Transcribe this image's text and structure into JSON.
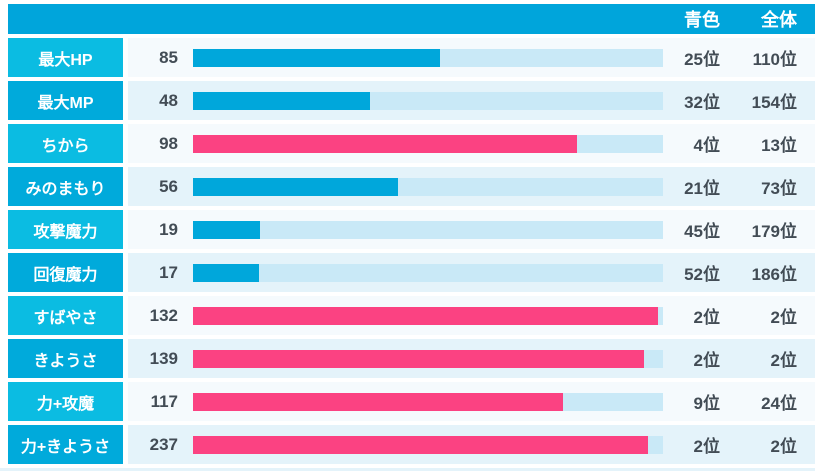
{
  "header": {
    "col_blue": "青色",
    "col_overall": "全体"
  },
  "colors": {
    "header_bg": "#00a5db",
    "label_odd": "#0bbce2",
    "label_even": "#00aadb",
    "row_odd": "#f5fafd",
    "row_even": "#e4f3fa",
    "bar_blue": "#00a7db",
    "bar_pink": "#fb4282",
    "track": "#c9e9f7",
    "text_dark": "#424c55",
    "text_white": "#ffffff"
  },
  "rows": [
    {
      "label": "最大HP",
      "value": "85",
      "bar_pct": 52.5,
      "bar_color": "blue",
      "rank_blue": "25位",
      "rank_overall": "110位"
    },
    {
      "label": "最大MP",
      "value": "48",
      "bar_pct": 37.7,
      "bar_color": "blue",
      "rank_blue": "32位",
      "rank_overall": "154位"
    },
    {
      "label": "ちから",
      "value": "98",
      "bar_pct": 81.8,
      "bar_color": "pink",
      "rank_blue": "4位",
      "rank_overall": "13位"
    },
    {
      "label": "みのまもり",
      "value": "56",
      "bar_pct": 43.7,
      "bar_color": "blue",
      "rank_blue": "21位",
      "rank_overall": "73位"
    },
    {
      "label": "攻撃魔力",
      "value": "19",
      "bar_pct": 14.3,
      "bar_color": "blue",
      "rank_blue": "45位",
      "rank_overall": "179位"
    },
    {
      "label": "回復魔力",
      "value": "17",
      "bar_pct": 14.1,
      "bar_color": "blue",
      "rank_blue": "52位",
      "rank_overall": "186位"
    },
    {
      "label": "すばやさ",
      "value": "132",
      "bar_pct": 98.9,
      "bar_color": "pink",
      "rank_blue": "2位",
      "rank_overall": "2位"
    },
    {
      "label": "きようさ",
      "value": "139",
      "bar_pct": 96.0,
      "bar_color": "pink",
      "rank_blue": "2位",
      "rank_overall": "2位"
    },
    {
      "label": "力+攻魔",
      "value": "117",
      "bar_pct": 78.7,
      "bar_color": "pink",
      "rank_blue": "9位",
      "rank_overall": "24位"
    },
    {
      "label": "力+きようさ",
      "value": "237",
      "bar_pct": 96.8,
      "bar_color": "pink",
      "rank_blue": "2位",
      "rank_overall": "2位"
    }
  ],
  "chart_data": {
    "type": "bar",
    "orientation": "horizontal",
    "categories": [
      "最大HP",
      "最大MP",
      "ちから",
      "みのまもり",
      "攻撃魔力",
      "回復魔力",
      "すばやさ",
      "きようさ",
      "力+攻魔",
      "力+きようさ"
    ],
    "values": [
      85,
      48,
      98,
      56,
      19,
      17,
      132,
      139,
      117,
      237
    ],
    "bar_fill_pct": [
      52.5,
      37.7,
      81.8,
      43.7,
      14.3,
      14.1,
      98.9,
      96.0,
      78.7,
      96.8
    ],
    "bar_colors": [
      "blue",
      "blue",
      "pink",
      "blue",
      "blue",
      "blue",
      "pink",
      "pink",
      "pink",
      "pink"
    ],
    "blue_hex": "#00a7db",
    "pink_hex": "#fb4282",
    "column_headers": [
      "青色",
      "全体"
    ],
    "rank_blue": [
      25,
      32,
      4,
      21,
      45,
      52,
      2,
      2,
      9,
      2
    ],
    "rank_overall": [
      110,
      154,
      13,
      73,
      179,
      186,
      2,
      2,
      24,
      2
    ],
    "grid": false,
    "legend_position": "none"
  }
}
